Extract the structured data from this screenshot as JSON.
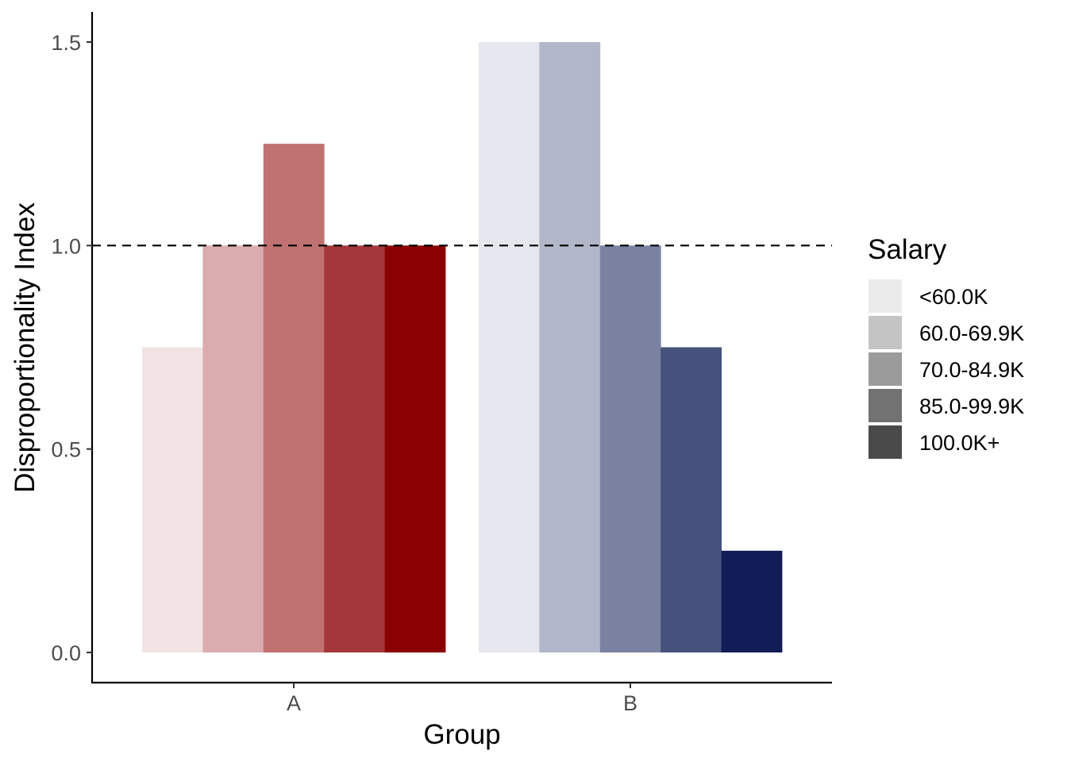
{
  "chart_data": {
    "type": "bar",
    "title": "",
    "xlabel": "Group",
    "ylabel": "Disproportionality Index",
    "categories": [
      "A",
      "B"
    ],
    "ylim": [
      0,
      1.5
    ],
    "yticks": [
      "0.0",
      "0.5",
      "1.0",
      "1.5"
    ],
    "ytick_values": [
      0,
      0.5,
      1.0,
      1.5
    ],
    "reference_line": {
      "y": 1.0,
      "style": "dashed"
    },
    "grid": false,
    "legend": {
      "title": "Salary",
      "placement": "right",
      "entries": [
        {
          "label": "<60.0K",
          "color": "#ebebeb"
        },
        {
          "label": "60.0-69.9K",
          "color": "#c4c4c4"
        },
        {
          "label": "70.0-84.9K",
          "color": "#9b9b9b"
        },
        {
          "label": "85.0-99.9K",
          "color": "#727272"
        },
        {
          "label": "100.0K+",
          "color": "#4a4a4a"
        }
      ]
    },
    "series": [
      {
        "name": "<60.0K",
        "values": [
          0.75,
          1.5
        ],
        "colors": [
          "#f2e3e5",
          "#e6e7ee"
        ]
      },
      {
        "name": "60.0-69.9K",
        "values": [
          1.0,
          1.5
        ],
        "colors": [
          "#dbacaf",
          "#b1b6c8"
        ]
      },
      {
        "name": "70.0-84.9K",
        "values": [
          1.25,
          1.0
        ],
        "colors": [
          "#c07273",
          "#7b82a1"
        ]
      },
      {
        "name": "85.0-99.9K",
        "values": [
          1.0,
          0.75
        ],
        "colors": [
          "#a4373a",
          "#46527d"
        ]
      },
      {
        "name": "100.0K+",
        "values": [
          1.0,
          0.25
        ],
        "colors": [
          "#8b0000",
          "#121d58"
        ]
      }
    ]
  }
}
